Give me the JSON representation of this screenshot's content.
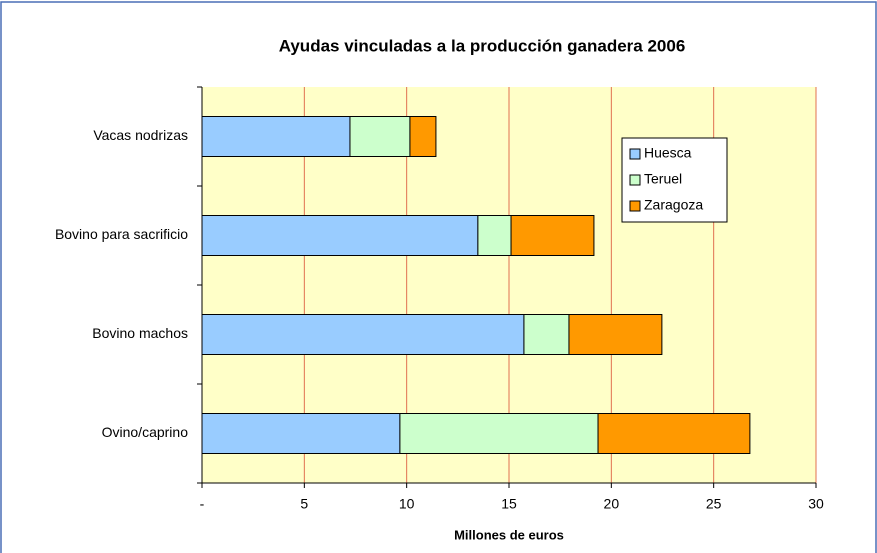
{
  "chart_data": {
    "type": "barh_stacked",
    "title": "Ayudas vinculadas a la producción ganadera 2006",
    "xlabel": "Millones de euros",
    "categories": [
      "Vacas nodrizas",
      "Bovino para sacrificio",
      "Bovino  machos",
      "Ovino/caprino"
    ],
    "series": [
      {
        "name": "Huesca",
        "color": "#99ccff",
        "values": [
          7.23,
          13.48,
          15.73,
          9.67
        ]
      },
      {
        "name": "Teruel",
        "color": "#ccffcc",
        "values": [
          2.93,
          1.62,
          2.2,
          9.68
        ]
      },
      {
        "name": "Zaragoza",
        "color": "#ff9900",
        "values": [
          1.27,
          4.05,
          4.54,
          7.42
        ]
      }
    ],
    "xlim": [
      0,
      30
    ],
    "xticks": [
      {
        "value": 0,
        "label": "-"
      },
      5,
      10,
      15,
      20,
      25,
      30
    ],
    "grid": true,
    "legend": "upper right"
  }
}
